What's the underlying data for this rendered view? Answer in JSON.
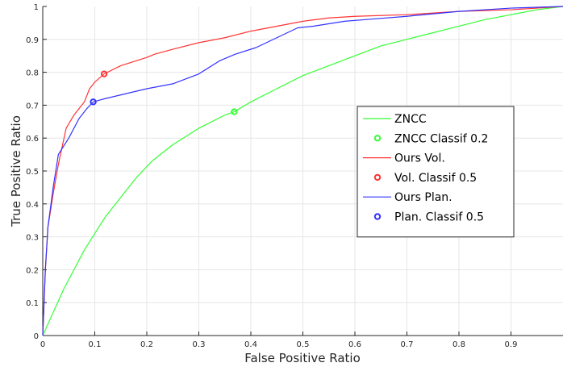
{
  "chart_data": {
    "type": "line",
    "xlabel": "False Positive Ratio",
    "ylabel": "True Positive Ratio",
    "xlim": [
      0,
      1
    ],
    "ylim": [
      0,
      1
    ],
    "xticks": [
      "0",
      "0.1",
      "0.2",
      "0.3",
      "0.4",
      "0.5",
      "0.6",
      "0.7",
      "0.8",
      "0.9"
    ],
    "yticks": [
      "0",
      "0.1",
      "0.2",
      "0.3",
      "0.4",
      "0.5",
      "0.6",
      "0.7",
      "0.8",
      "0.9",
      "1"
    ],
    "grid": true,
    "legend_position": "right",
    "series": [
      {
        "name": "ZNCC",
        "color": "#33ff33",
        "x": [
          0,
          0.02,
          0.04,
          0.06,
          0.08,
          0.1,
          0.12,
          0.15,
          0.18,
          0.21,
          0.25,
          0.3,
          0.35,
          0.368,
          0.4,
          0.45,
          0.5,
          0.55,
          0.6,
          0.65,
          0.7,
          0.75,
          0.8,
          0.85,
          0.9,
          0.95,
          1.0
        ],
        "y": [
          0,
          0.07,
          0.14,
          0.2,
          0.26,
          0.31,
          0.36,
          0.42,
          0.48,
          0.53,
          0.58,
          0.63,
          0.67,
          0.68,
          0.71,
          0.75,
          0.79,
          0.82,
          0.85,
          0.88,
          0.9,
          0.92,
          0.94,
          0.96,
          0.975,
          0.99,
          1.0
        ]
      },
      {
        "name": "ZNCC Classif 0.2",
        "color": "#33ff33",
        "marker": true,
        "x": [
          0.368
        ],
        "y": [
          0.68
        ]
      },
      {
        "name": "Ours Vol.",
        "color": "#ff3333",
        "x": [
          0,
          0.005,
          0.01,
          0.02,
          0.03,
          0.045,
          0.06,
          0.08,
          0.09,
          0.1,
          0.118,
          0.15,
          0.2,
          0.215,
          0.25,
          0.3,
          0.35,
          0.4,
          0.45,
          0.5,
          0.55,
          0.6,
          0.7,
          0.8,
          0.9,
          0.95,
          1.0
        ],
        "y": [
          0,
          0.2,
          0.33,
          0.43,
          0.52,
          0.63,
          0.67,
          0.71,
          0.75,
          0.77,
          0.795,
          0.82,
          0.845,
          0.855,
          0.87,
          0.89,
          0.905,
          0.925,
          0.94,
          0.955,
          0.965,
          0.97,
          0.975,
          0.985,
          0.99,
          0.995,
          1.0
        ]
      },
      {
        "name": "Vol. Classif 0.5",
        "color": "#ff3333",
        "marker": true,
        "x": [
          0.118
        ],
        "y": [
          0.795
        ]
      },
      {
        "name": "Ours Plan.",
        "color": "#3333ff",
        "x": [
          0,
          0.005,
          0.01,
          0.02,
          0.03,
          0.05,
          0.07,
          0.085,
          0.097,
          0.12,
          0.16,
          0.2,
          0.25,
          0.3,
          0.34,
          0.37,
          0.41,
          0.45,
          0.49,
          0.52,
          0.58,
          0.62,
          0.7,
          0.8,
          0.9,
          1.0
        ],
        "y": [
          0,
          0.2,
          0.33,
          0.45,
          0.55,
          0.6,
          0.66,
          0.69,
          0.71,
          0.72,
          0.735,
          0.75,
          0.765,
          0.795,
          0.835,
          0.855,
          0.875,
          0.905,
          0.935,
          0.94,
          0.955,
          0.96,
          0.97,
          0.985,
          0.995,
          1.0
        ]
      },
      {
        "name": "Plan. Classif 0.5",
        "color": "#3333ff",
        "marker": true,
        "x": [
          0.097
        ],
        "y": [
          0.71
        ]
      }
    ]
  }
}
